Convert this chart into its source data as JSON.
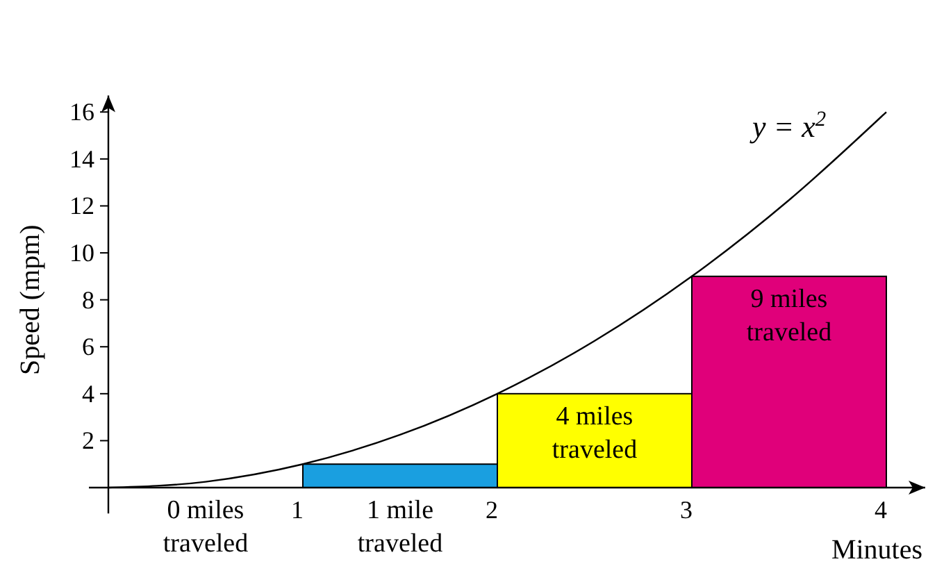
{
  "chart_data": {
    "type": "bar",
    "xlabel": "Minutes",
    "ylabel": "Speed (mpm)",
    "series": [
      {
        "x": [
          0.5,
          1.5,
          2.5,
          3.5
        ],
        "values": [
          0,
          1,
          4,
          9
        ],
        "colors": [
          "#1a9fe0",
          "#1a9fe0",
          "#ffff00",
          "#e0007a"
        ]
      },
      {
        "type": "line",
        "color": "#000000",
        "x": [
          0,
          0.5,
          1,
          1.5,
          2,
          2.5,
          3,
          3.5,
          4
        ],
        "values": [
          0,
          0.25,
          1,
          2.25,
          4,
          6.25,
          9,
          12.25,
          16
        ]
      }
    ],
    "xlim": [
      -0.1,
      4.2
    ],
    "xticks": [
      1,
      2,
      3,
      4
    ],
    "ylim": [
      -1.1,
      16.7
    ],
    "yticks": [
      2,
      4,
      6,
      8,
      10,
      12,
      14,
      16
    ],
    "grid": false,
    "marker": "none",
    "line_style": "solid",
    "annotations": [
      {
        "text": "0 miles\ntraveled",
        "x": 0.5,
        "y": 0
      },
      {
        "text": "1 mile\ntraveled",
        "x": 1.5,
        "y": 0
      },
      {
        "text": "4 miles\ntraveled",
        "x": 2.5,
        "y": 4
      },
      {
        "text": "9 miles\ntraveled",
        "x": 3.5,
        "y": 9
      },
      "y = x$^{2}$"
    ]
  }
}
